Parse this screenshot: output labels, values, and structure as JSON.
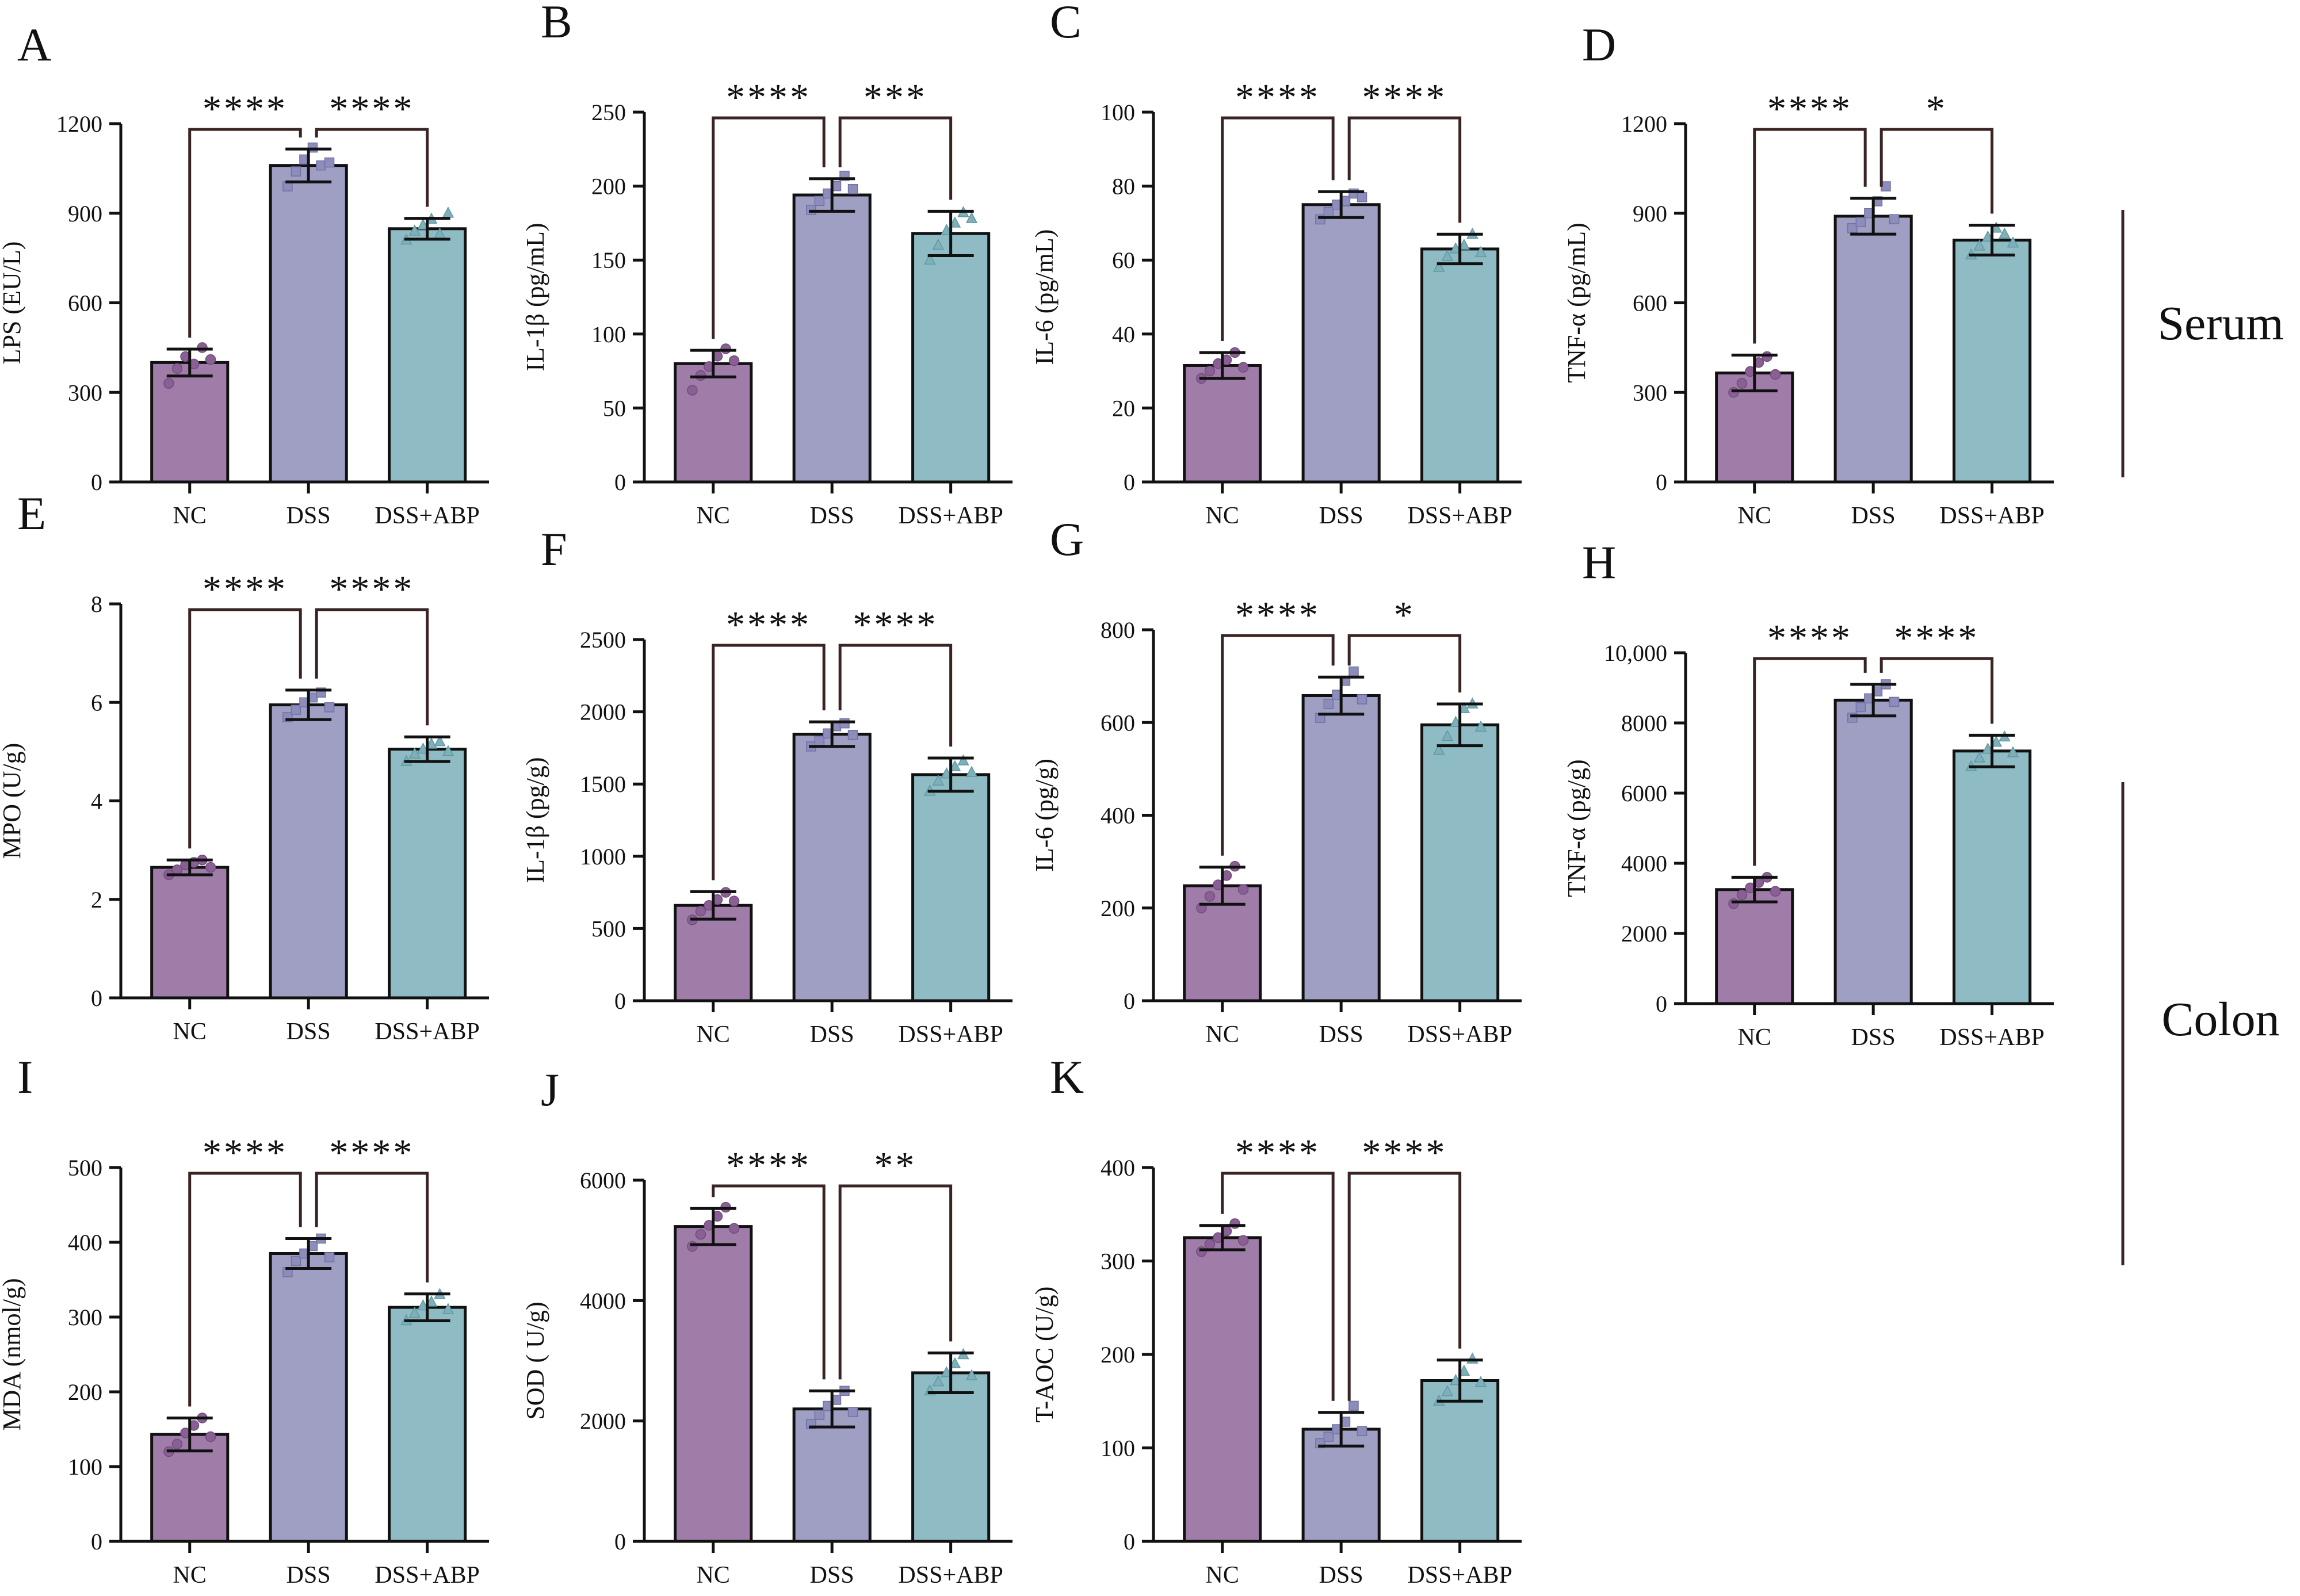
{
  "figure": {
    "groups": [
      "NC",
      "DSS",
      "DSS+ABP"
    ],
    "colors": {
      "NC": "#A07DA9",
      "DSS": "#9E9FC3",
      "DSS+ABP": "#8FBCC4",
      "stroke": "#111111",
      "bracket": "#3a2323"
    },
    "side_labels": [
      {
        "label": "Serum",
        "panels": [
          "A",
          "B",
          "C",
          "D"
        ]
      },
      {
        "label": "Colon",
        "panels": [
          "E",
          "F",
          "G",
          "H",
          "I",
          "J",
          "K"
        ]
      }
    ]
  },
  "chart_data": [
    {
      "panel": "A",
      "type": "bar",
      "categories": [
        "NC",
        "DSS",
        "DSS+ABP"
      ],
      "values": [
        400,
        1060,
        848
      ],
      "errors": [
        45,
        55,
        35
      ],
      "ylabel": "LPS (EU/L)",
      "ylim": [
        0,
        1200
      ],
      "yticks": [
        "0",
        "300",
        "600",
        "900",
        "1200"
      ],
      "tickvals": [
        0,
        300,
        600,
        900,
        1200
      ],
      "points": [
        [
          330,
          380,
          420,
          395,
          450,
          410
        ],
        [
          990,
          1040,
          1080,
          1120,
          1060,
          1070
        ],
        [
          810,
          840,
          860,
          880,
          830,
          900
        ]
      ],
      "sig": [
        {
          "text": "****",
          "from": 0,
          "to": 1
        },
        {
          "text": "****",
          "from": 1,
          "to": 2
        }
      ]
    },
    {
      "panel": "B",
      "type": "bar",
      "categories": [
        "NC",
        "DSS",
        "DSS+ABP"
      ],
      "values": [
        80,
        194,
        168
      ],
      "errors": [
        9,
        11,
        15
      ],
      "ylabel": "IL-1β (pg/mL)",
      "ylim": [
        0,
        250
      ],
      "yticks": [
        "0",
        "50",
        "100",
        "150",
        "200",
        "250"
      ],
      "tickvals": [
        0,
        50,
        100,
        150,
        200,
        250
      ],
      "points": [
        [
          62,
          72,
          78,
          85,
          90,
          82
        ],
        [
          184,
          190,
          195,
          200,
          207,
          198
        ],
        [
          150,
          160,
          170,
          175,
          182,
          178
        ]
      ],
      "sig": [
        {
          "text": "****",
          "from": 0,
          "to": 1
        },
        {
          "text": "***",
          "from": 1,
          "to": 2
        }
      ]
    },
    {
      "panel": "C",
      "type": "bar",
      "categories": [
        "NC",
        "DSS",
        "DSS+ABP"
      ],
      "values": [
        31.5,
        75,
        63
      ],
      "errors": [
        3.5,
        3.5,
        4
      ],
      "ylabel": "IL-6 (pg/mL)",
      "ylim": [
        0,
        100
      ],
      "yticks": [
        "0",
        "20",
        "40",
        "60",
        "80",
        "100"
      ],
      "tickvals": [
        0,
        20,
        40,
        60,
        80,
        100
      ],
      "points": [
        [
          28,
          30,
          32,
          33,
          35,
          31
        ],
        [
          71,
          73,
          75,
          76,
          78,
          77
        ],
        [
          58,
          61,
          63,
          64,
          67,
          62
        ]
      ],
      "sig": [
        {
          "text": "****",
          "from": 0,
          "to": 1
        },
        {
          "text": "****",
          "from": 1,
          "to": 2
        }
      ]
    },
    {
      "panel": "D",
      "type": "bar",
      "categories": [
        "NC",
        "DSS",
        "DSS+ABP"
      ],
      "values": [
        365,
        890,
        810
      ],
      "errors": [
        60,
        60,
        50
      ],
      "ylabel": "TNF-α (pg/mL)",
      "ylim": [
        0,
        1200
      ],
      "yticks": [
        "0",
        "300",
        "600",
        "900",
        "1200"
      ],
      "tickvals": [
        0,
        300,
        600,
        900,
        1200
      ],
      "points": [
        [
          300,
          330,
          370,
          400,
          420,
          360
        ],
        [
          850,
          870,
          900,
          940,
          990,
          880
        ],
        [
          760,
          790,
          820,
          850,
          830,
          800
        ]
      ],
      "sig": [
        {
          "text": "****",
          "from": 0,
          "to": 1
        },
        {
          "text": "*",
          "from": 1,
          "to": 2
        }
      ]
    },
    {
      "panel": "E",
      "type": "bar",
      "categories": [
        "NC",
        "DSS",
        "DSS+ABP"
      ],
      "values": [
        2.65,
        5.95,
        5.05
      ],
      "errors": [
        0.15,
        0.3,
        0.25
      ],
      "ylabel": "MPO (U/g)",
      "ylim": [
        0,
        8
      ],
      "yticks": [
        "0",
        "2",
        "4",
        "6",
        "8"
      ],
      "tickvals": [
        0,
        2,
        4,
        6,
        8
      ],
      "points": [
        [
          2.5,
          2.6,
          2.7,
          2.75,
          2.8,
          2.65
        ],
        [
          5.7,
          5.85,
          6.0,
          6.1,
          6.2,
          5.9
        ],
        [
          4.8,
          4.95,
          5.05,
          5.15,
          5.2,
          5.0
        ]
      ],
      "sig": [
        {
          "text": "****",
          "from": 0,
          "to": 1
        },
        {
          "text": "****",
          "from": 1,
          "to": 2
        }
      ]
    },
    {
      "panel": "F",
      "type": "bar",
      "categories": [
        "NC",
        "DSS",
        "DSS+ABP"
      ],
      "values": [
        660,
        1845,
        1565
      ],
      "errors": [
        95,
        85,
        115
      ],
      "ylabel": "IL-1β (pg/g)",
      "ylim": [
        0,
        2500
      ],
      "yticks": [
        "0",
        "500",
        "1000",
        "1500",
        "2000",
        "2500"
      ],
      "tickvals": [
        0,
        500,
        1000,
        1500,
        2000,
        2500
      ],
      "points": [
        [
          560,
          620,
          660,
          700,
          750,
          690
        ],
        [
          1760,
          1800,
          1850,
          1900,
          1920,
          1840
        ],
        [
          1450,
          1520,
          1570,
          1620,
          1660,
          1580
        ]
      ],
      "sig": [
        {
          "text": "****",
          "from": 0,
          "to": 1
        },
        {
          "text": "****",
          "from": 1,
          "to": 2
        }
      ]
    },
    {
      "panel": "G",
      "type": "bar",
      "categories": [
        "NC",
        "DSS",
        "DSS+ABP"
      ],
      "values": [
        248,
        658,
        595
      ],
      "errors": [
        40,
        40,
        45
      ],
      "ylabel": "IL-6 (pg/g)",
      "ylim": [
        0,
        800
      ],
      "yticks": [
        "0",
        "200",
        "400",
        "600",
        "800"
      ],
      "tickvals": [
        0,
        200,
        400,
        600,
        800
      ],
      "points": [
        [
          200,
          225,
          250,
          270,
          290,
          240
        ],
        [
          610,
          640,
          660,
          690,
          710,
          650
        ],
        [
          540,
          570,
          600,
          630,
          640,
          590
        ]
      ],
      "sig": [
        {
          "text": "****",
          "from": 0,
          "to": 1
        },
        {
          "text": "*",
          "from": 1,
          "to": 2
        }
      ]
    },
    {
      "panel": "H",
      "type": "bar",
      "categories": [
        "NC",
        "DSS",
        "DSS+ABP"
      ],
      "values": [
        3250,
        8650,
        7200
      ],
      "errors": [
        350,
        450,
        450
      ],
      "ylabel": "TNF-α (pg/g)",
      "ylim": [
        0,
        10000
      ],
      "yticks": [
        "0",
        "2000",
        "4000",
        "6000",
        "8000",
        "10,000"
      ],
      "tickvals": [
        0,
        2000,
        4000,
        6000,
        8000,
        10000
      ],
      "points": [
        [
          2850,
          3100,
          3300,
          3450,
          3600,
          3200
        ],
        [
          8150,
          8450,
          8700,
          8900,
          9100,
          8600
        ],
        [
          6750,
          7000,
          7250,
          7450,
          7600,
          7150
        ]
      ],
      "sig": [
        {
          "text": "****",
          "from": 0,
          "to": 1
        },
        {
          "text": "****",
          "from": 1,
          "to": 2
        }
      ]
    },
    {
      "panel": "I",
      "type": "bar",
      "categories": [
        "NC",
        "DSS",
        "DSS+ABP"
      ],
      "values": [
        143,
        385,
        313
      ],
      "errors": [
        22,
        20,
        18
      ],
      "ylabel": "MDA (nmol/g)",
      "ylim": [
        0,
        500
      ],
      "yticks": [
        "0",
        "100",
        "200",
        "300",
        "400",
        "500"
      ],
      "tickvals": [
        0,
        100,
        200,
        300,
        400,
        500
      ],
      "points": [
        [
          120,
          130,
          145,
          155,
          165,
          140
        ],
        [
          360,
          375,
          385,
          395,
          405,
          380
        ],
        [
          295,
          305,
          315,
          320,
          330,
          310
        ]
      ],
      "sig": [
        {
          "text": "****",
          "from": 0,
          "to": 1
        },
        {
          "text": "****",
          "from": 1,
          "to": 2
        }
      ]
    },
    {
      "panel": "J",
      "type": "bar",
      "categories": [
        "NC",
        "DSS",
        "DSS+ABP"
      ],
      "values": [
        5230,
        2200,
        2800
      ],
      "errors": [
        300,
        300,
        330
      ],
      "ylabel": "SOD ( U/g)",
      "ylim": [
        0,
        6000
      ],
      "yticks": [
        "0",
        "2000",
        "4000",
        "6000"
      ],
      "tickvals": [
        0,
        2000,
        4000,
        6000
      ],
      "points": [
        [
          4900,
          5100,
          5250,
          5400,
          5550,
          5200
        ],
        [
          1950,
          2100,
          2250,
          2350,
          2500,
          2150
        ],
        [
          2500,
          2650,
          2800,
          2950,
          3100,
          2750
        ]
      ],
      "sig": [
        {
          "text": "****",
          "from": 0,
          "to": 1
        },
        {
          "text": "**",
          "from": 1,
          "to": 2
        }
      ]
    },
    {
      "panel": "K",
      "type": "bar",
      "categories": [
        "NC",
        "DSS",
        "DSS+ABP"
      ],
      "values": [
        325,
        120,
        172
      ],
      "errors": [
        13,
        18,
        22
      ],
      "ylabel": "T-AOC (U/g)",
      "ylim": [
        0,
        400
      ],
      "yticks": [
        "0",
        "100",
        "200",
        "300",
        "400"
      ],
      "tickvals": [
        0,
        100,
        200,
        300,
        400
      ],
      "points": [
        [
          310,
          318,
          325,
          332,
          340,
          322
        ],
        [
          105,
          112,
          120,
          128,
          145,
          118
        ],
        [
          150,
          160,
          172,
          182,
          195,
          170
        ]
      ],
      "sig": [
        {
          "text": "****",
          "from": 0,
          "to": 1
        },
        {
          "text": "****",
          "from": 1,
          "to": 2
        }
      ]
    }
  ]
}
